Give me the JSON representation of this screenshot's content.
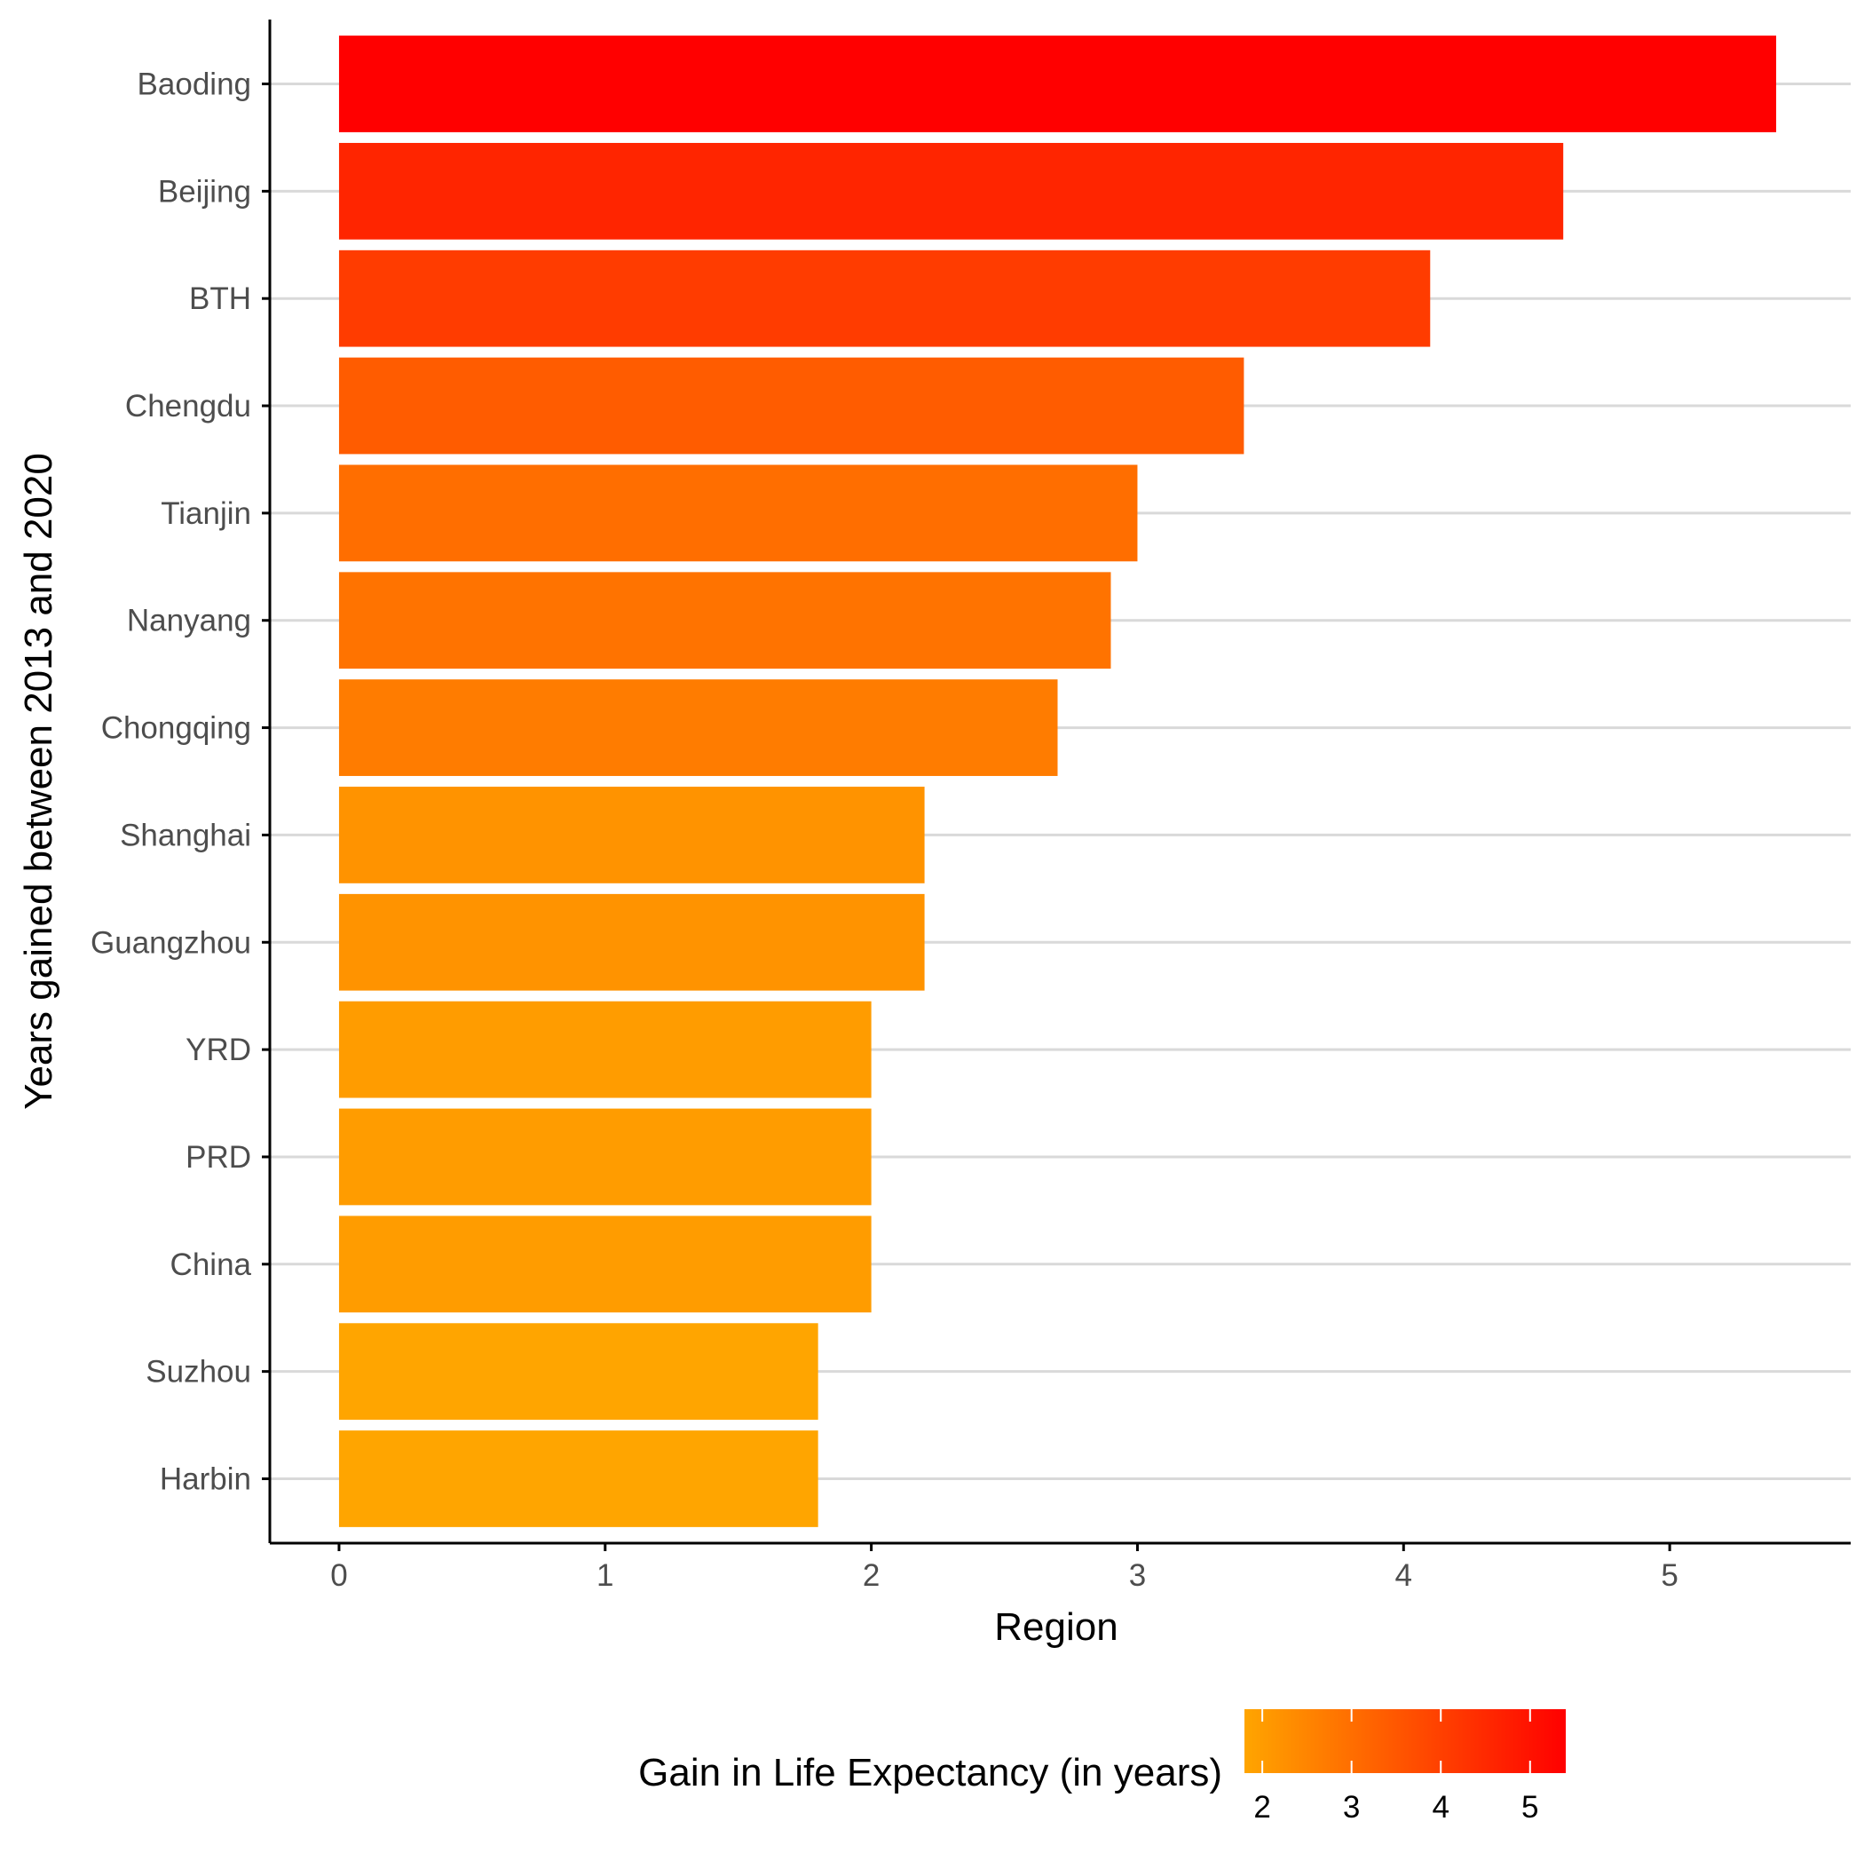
{
  "chart_data": {
    "type": "bar",
    "orientation": "horizontal",
    "categories": [
      "Baoding",
      "Beijing",
      "BTH",
      "Chengdu",
      "Tianjin",
      "Nanyang",
      "Chongqing",
      "Shanghai",
      "Guangzhou",
      "YRD",
      "PRD",
      "China",
      "Suzhou",
      "Harbin"
    ],
    "values": [
      5.4,
      4.6,
      4.1,
      3.4,
      3.0,
      2.9,
      2.7,
      2.2,
      2.2,
      2.0,
      2.0,
      2.0,
      1.8,
      1.8
    ],
    "xlabel": "Region",
    "ylabel": "Years gained between 2013 and 2020",
    "xlim": [
      -0.26,
      5.68
    ],
    "xticks": [
      0,
      1,
      2,
      3,
      4,
      5
    ],
    "grid": "horizontal major gridlines",
    "legend": {
      "title": "Gain in Life Expectancy (in years)",
      "placement": "bottom",
      "type": "colorbar",
      "ticks": [
        2,
        3,
        4,
        5
      ],
      "range": [
        1.8,
        5.4
      ]
    },
    "colors": {
      "low": "#FFA500",
      "high": "#FF0000",
      "grid": "#D9D9D9",
      "axis": "#000000"
    }
  }
}
